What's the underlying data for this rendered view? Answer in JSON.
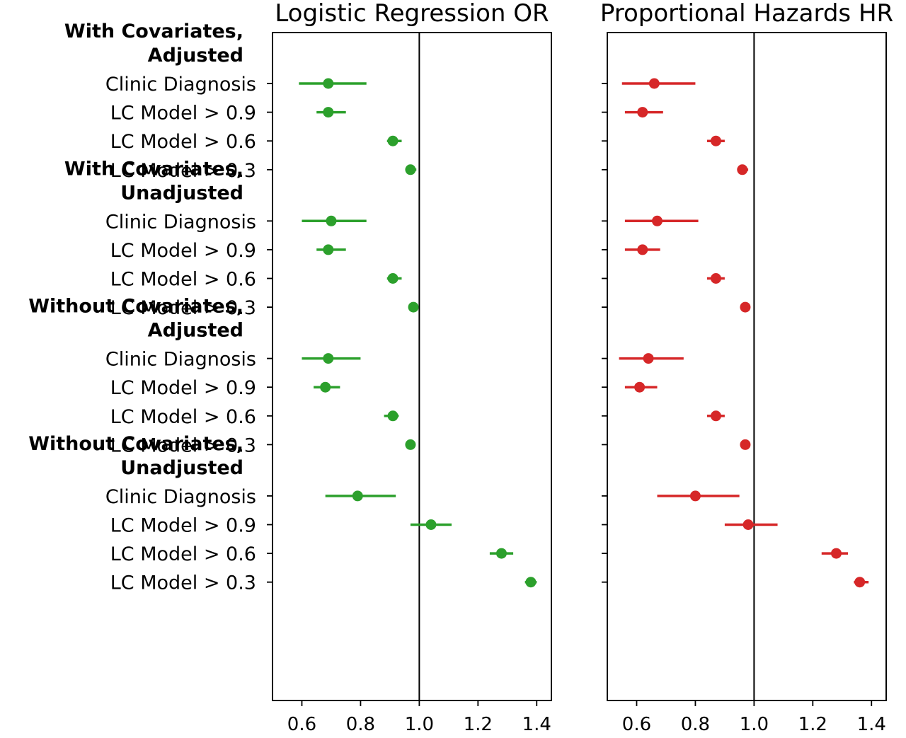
{
  "chart_data": {
    "type": "forest",
    "reference_line": 1.0,
    "xticks": [
      "0.6",
      "0.8",
      "1.0",
      "1.2",
      "1.4"
    ],
    "xtick_values": [
      0.6,
      0.8,
      1.0,
      1.2,
      1.4
    ],
    "xlim": [
      0.5,
      1.45
    ],
    "grid": false,
    "groups": [
      {
        "label_line1": "With Covariates,",
        "label_line2": "Adjusted",
        "rows": [
          "Clinic Diagnosis",
          "LC Model > 0.9",
          "LC Model > 0.6",
          "LC Model > 0.3"
        ]
      },
      {
        "label_line1": "With Covariates,",
        "label_line2": "Unadjusted",
        "rows": [
          "Clinic Diagnosis",
          "LC Model > 0.9",
          "LC Model > 0.6",
          "LC Model > 0.3"
        ]
      },
      {
        "label_line1": "Without Covariates,",
        "label_line2": "Adjusted",
        "rows": [
          "Clinic Diagnosis",
          "LC Model > 0.9",
          "LC Model > 0.6",
          "LC Model > 0.3"
        ]
      },
      {
        "label_line1": "Without Covariates,",
        "label_line2": "Unadjusted",
        "rows": [
          "Clinic Diagnosis",
          "LC Model > 0.9",
          "LC Model > 0.6",
          "LC Model > 0.3"
        ]
      }
    ],
    "panels": [
      {
        "title": "Logistic Regression OR",
        "color": "#2ca02c",
        "estimates": [
          [
            0.69,
            0.69,
            0.91,
            0.97
          ],
          [
            0.7,
            0.69,
            0.91,
            0.98
          ],
          [
            0.69,
            0.68,
            0.91,
            0.97
          ],
          [
            0.79,
            1.04,
            1.28,
            1.38
          ]
        ],
        "lower": [
          [
            0.59,
            0.65,
            0.89,
            0.96
          ],
          [
            0.6,
            0.65,
            0.89,
            0.97
          ],
          [
            0.6,
            0.64,
            0.88,
            0.96
          ],
          [
            0.68,
            0.97,
            1.24,
            1.36
          ]
        ],
        "upper": [
          [
            0.82,
            0.75,
            0.94,
            0.99
          ],
          [
            0.82,
            0.75,
            0.94,
            0.99
          ],
          [
            0.8,
            0.73,
            0.93,
            0.98
          ],
          [
            0.92,
            1.11,
            1.32,
            1.4
          ]
        ]
      },
      {
        "title": "Proportional Hazards HR",
        "color": "#d62728",
        "estimates": [
          [
            0.66,
            0.62,
            0.87,
            0.96
          ],
          [
            0.67,
            0.62,
            0.87,
            0.97
          ],
          [
            0.64,
            0.61,
            0.87,
            0.97
          ],
          [
            0.8,
            0.98,
            1.28,
            1.36
          ]
        ],
        "lower": [
          [
            0.55,
            0.56,
            0.84,
            0.95
          ],
          [
            0.56,
            0.56,
            0.84,
            0.96
          ],
          [
            0.54,
            0.56,
            0.84,
            0.96
          ],
          [
            0.67,
            0.9,
            1.23,
            1.34
          ]
        ],
        "upper": [
          [
            0.8,
            0.69,
            0.9,
            0.98
          ],
          [
            0.81,
            0.68,
            0.9,
            0.98
          ],
          [
            0.76,
            0.67,
            0.9,
            0.98
          ],
          [
            0.95,
            1.08,
            1.32,
            1.39
          ]
        ]
      }
    ]
  }
}
